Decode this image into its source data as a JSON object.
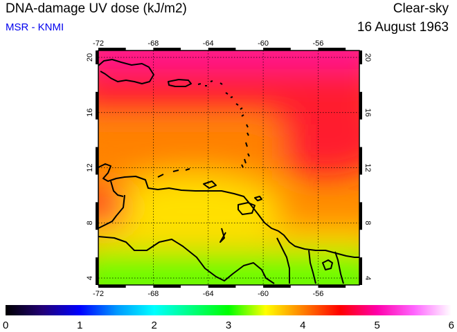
{
  "header": {
    "title": "DNA-damage UV dose (kJ/m2)",
    "source": "MSR - KNMI",
    "sky_condition": "Clear-sky",
    "date": "16 August 1963"
  },
  "map": {
    "lon_range": [
      -72,
      -53
    ],
    "lat_range": [
      3.5,
      20.5
    ],
    "lon_ticks": [
      {
        "value": -72,
        "label": "-72"
      },
      {
        "value": -68,
        "label": "-68"
      },
      {
        "value": -64,
        "label": "-64"
      },
      {
        "value": -60,
        "label": "-60"
      },
      {
        "value": -56,
        "label": "-56"
      }
    ],
    "lat_ticks": [
      {
        "value": 4,
        "label": "4"
      },
      {
        "value": 8,
        "label": "8"
      },
      {
        "value": 12,
        "label": "12"
      },
      {
        "value": 16,
        "label": "16"
      },
      {
        "value": 20,
        "label": "20"
      }
    ],
    "grid_lines": "dotted",
    "colors": {
      "magenta": "#ff1493",
      "red": "#ff1f2e",
      "orange": "#ff8000",
      "yellow": "#ffe000",
      "green": "#66ff00"
    }
  },
  "colorbar": {
    "min": 0,
    "max": 6,
    "tick_labels": [
      "0",
      "1",
      "2",
      "3",
      "4",
      "5",
      "6"
    ],
    "stops": [
      {
        "value": 0,
        "color": "#000000"
      },
      {
        "value": 0.5,
        "color": "#220077"
      },
      {
        "value": 1,
        "color": "#0000ff"
      },
      {
        "value": 1.5,
        "color": "#0099ff"
      },
      {
        "value": 2,
        "color": "#00ffff"
      },
      {
        "value": 2.5,
        "color": "#00ff80"
      },
      {
        "value": 3,
        "color": "#00ff00"
      },
      {
        "value": 3.5,
        "color": "#ffff00"
      },
      {
        "value": 4,
        "color": "#ff8000"
      },
      {
        "value": 4.5,
        "color": "#ff0000"
      },
      {
        "value": 5,
        "color": "#ff00aa"
      },
      {
        "value": 5.5,
        "color": "#ff66ff"
      },
      {
        "value": 6,
        "color": "#ffffff"
      }
    ]
  }
}
